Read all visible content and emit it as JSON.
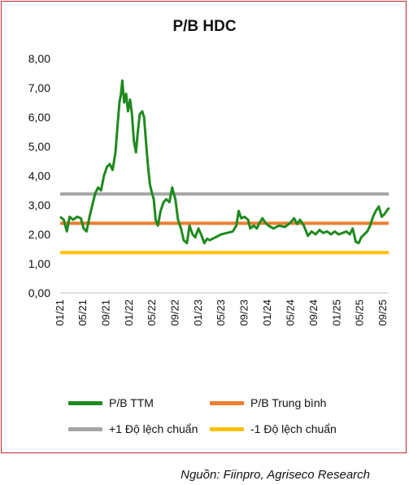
{
  "chart_data": {
    "type": "line",
    "title": "P/B HDC",
    "yticks": [
      "0,00",
      "1,00",
      "2,00",
      "3,00",
      "4,00",
      "5,00",
      "6,00",
      "7,00",
      "8,00"
    ],
    "ylim": [
      0,
      8
    ],
    "xticks": [
      "01/21",
      "05/21",
      "09/21",
      "01/22",
      "05/22",
      "09/22",
      "01/23",
      "05/23",
      "09/23",
      "01/24",
      "05/24",
      "09/24",
      "01/25",
      "05/25",
      "09/25"
    ],
    "grid": false,
    "legend_position": "bottom",
    "series": [
      {
        "name": "P/B TTM",
        "color": "#1e8a1e",
        "x_range": [
          "2021-01",
          "2025-10"
        ],
        "points": [
          [
            "2021-01-01",
            2.6
          ],
          [
            "2021-01-20",
            2.5
          ],
          [
            "2021-02-05",
            2.1
          ],
          [
            "2021-02-20",
            2.6
          ],
          [
            "2021-03-10",
            2.5
          ],
          [
            "2021-04-01",
            2.6
          ],
          [
            "2021-04-20",
            2.55
          ],
          [
            "2021-05-05",
            2.2
          ],
          [
            "2021-05-20",
            2.1
          ],
          [
            "2021-06-05",
            2.6
          ],
          [
            "2021-06-20",
            3.0
          ],
          [
            "2021-07-05",
            3.4
          ],
          [
            "2021-07-20",
            3.6
          ],
          [
            "2021-08-05",
            3.5
          ],
          [
            "2021-08-20",
            4.0
          ],
          [
            "2021-09-05",
            4.3
          ],
          [
            "2021-09-20",
            4.4
          ],
          [
            "2021-10-05",
            4.2
          ],
          [
            "2021-10-20",
            4.8
          ],
          [
            "2021-11-01",
            5.8
          ],
          [
            "2021-11-10",
            6.5
          ],
          [
            "2021-11-18",
            6.8
          ],
          [
            "2021-11-25",
            7.25
          ],
          [
            "2021-12-05",
            6.5
          ],
          [
            "2021-12-15",
            6.8
          ],
          [
            "2021-12-25",
            6.2
          ],
          [
            "2022-01-05",
            6.6
          ],
          [
            "2022-01-15",
            6.1
          ],
          [
            "2022-01-25",
            5.2
          ],
          [
            "2022-02-05",
            4.8
          ],
          [
            "2022-02-15",
            5.5
          ],
          [
            "2022-02-25",
            6.1
          ],
          [
            "2022-03-10",
            6.2
          ],
          [
            "2022-03-20",
            6.0
          ],
          [
            "2022-04-01",
            5.0
          ],
          [
            "2022-04-10",
            4.3
          ],
          [
            "2022-04-20",
            3.7
          ],
          [
            "2022-05-01",
            3.4
          ],
          [
            "2022-05-10",
            3.2
          ],
          [
            "2022-05-20",
            2.5
          ],
          [
            "2022-06-01",
            2.3
          ],
          [
            "2022-06-15",
            2.8
          ],
          [
            "2022-07-01",
            3.1
          ],
          [
            "2022-07-15",
            3.2
          ],
          [
            "2022-08-01",
            3.1
          ],
          [
            "2022-08-15",
            3.6
          ],
          [
            "2022-09-01",
            3.2
          ],
          [
            "2022-09-15",
            2.5
          ],
          [
            "2022-10-01",
            2.2
          ],
          [
            "2022-10-15",
            1.8
          ],
          [
            "2022-11-01",
            1.7
          ],
          [
            "2022-11-15",
            2.3
          ],
          [
            "2022-12-01",
            2.0
          ],
          [
            "2022-12-15",
            1.9
          ],
          [
            "2023-01-01",
            2.2
          ],
          [
            "2023-01-15",
            2.0
          ],
          [
            "2023-02-01",
            1.7
          ],
          [
            "2023-02-15",
            1.85
          ],
          [
            "2023-03-01",
            1.8
          ],
          [
            "2023-04-01",
            1.9
          ],
          [
            "2023-05-01",
            2.0
          ],
          [
            "2023-06-01",
            2.05
          ],
          [
            "2023-07-01",
            2.1
          ],
          [
            "2023-07-20",
            2.3
          ],
          [
            "2023-08-01",
            2.8
          ],
          [
            "2023-08-15",
            2.55
          ],
          [
            "2023-09-01",
            2.6
          ],
          [
            "2023-09-20",
            2.5
          ],
          [
            "2023-10-01",
            2.2
          ],
          [
            "2023-10-20",
            2.3
          ],
          [
            "2023-11-05",
            2.2
          ],
          [
            "2023-11-20",
            2.4
          ],
          [
            "2023-12-05",
            2.55
          ],
          [
            "2023-12-20",
            2.4
          ],
          [
            "2024-01-05",
            2.3
          ],
          [
            "2024-02-01",
            2.2
          ],
          [
            "2024-03-01",
            2.3
          ],
          [
            "2024-04-01",
            2.25
          ],
          [
            "2024-05-01",
            2.4
          ],
          [
            "2024-05-20",
            2.55
          ],
          [
            "2024-06-05",
            2.35
          ],
          [
            "2024-06-20",
            2.5
          ],
          [
            "2024-07-10",
            2.3
          ],
          [
            "2024-08-01",
            1.95
          ],
          [
            "2024-08-20",
            2.1
          ],
          [
            "2024-09-10",
            2.0
          ],
          [
            "2024-10-01",
            2.15
          ],
          [
            "2024-10-20",
            2.05
          ],
          [
            "2024-11-10",
            2.1
          ],
          [
            "2024-12-01",
            2.0
          ],
          [
            "2024-12-20",
            2.1
          ],
          [
            "2025-01-10",
            2.0
          ],
          [
            "2025-02-01",
            2.05
          ],
          [
            "2025-02-20",
            2.1
          ],
          [
            "2025-03-10",
            2.0
          ],
          [
            "2025-03-25",
            2.2
          ],
          [
            "2025-04-10",
            1.75
          ],
          [
            "2025-04-25",
            1.7
          ],
          [
            "2025-05-10",
            1.9
          ],
          [
            "2025-05-25",
            2.0
          ],
          [
            "2025-06-10",
            2.1
          ],
          [
            "2025-06-25",
            2.3
          ],
          [
            "2025-07-10",
            2.6
          ],
          [
            "2025-07-25",
            2.8
          ],
          [
            "2025-08-10",
            2.95
          ],
          [
            "2025-08-25",
            2.6
          ],
          [
            "2025-09-10",
            2.7
          ],
          [
            "2025-09-25",
            2.85
          ],
          [
            "2025-10-05",
            2.9
          ]
        ]
      },
      {
        "name": "P/B Trung bình",
        "color": "#ed7d31",
        "value": 2.38
      },
      {
        "name": "+1 Độ lệch chuẩn",
        "color": "#a5a5a5",
        "value": 3.38
      },
      {
        "name": "-1 Độ lệch chuẩn",
        "color": "#ffc000",
        "value": 1.38
      }
    ]
  },
  "source": "Nguồn: Fiinpro, Agriseco Research"
}
